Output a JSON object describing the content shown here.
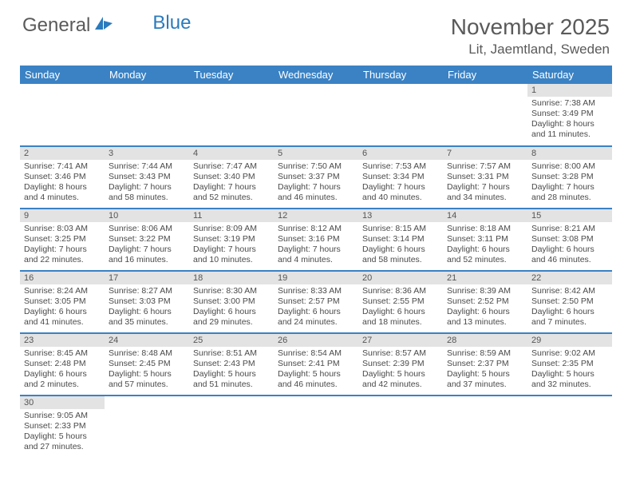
{
  "logo": {
    "text1": "General",
    "text2": "Blue"
  },
  "title": "November 2025",
  "location": "Lit, Jaemtland, Sweden",
  "colors": {
    "header_bg": "#3a82c4",
    "daynum_bg": "#e3e3e3",
    "text": "#5a5a5a"
  },
  "day_headers": [
    "Sunday",
    "Monday",
    "Tuesday",
    "Wednesday",
    "Thursday",
    "Friday",
    "Saturday"
  ],
  "weeks": [
    [
      null,
      null,
      null,
      null,
      null,
      null,
      {
        "n": "1",
        "sr": "7:38 AM",
        "ss": "3:49 PM",
        "dl": "8 hours and 11 minutes."
      }
    ],
    [
      {
        "n": "2",
        "sr": "7:41 AM",
        "ss": "3:46 PM",
        "dl": "8 hours and 4 minutes."
      },
      {
        "n": "3",
        "sr": "7:44 AM",
        "ss": "3:43 PM",
        "dl": "7 hours and 58 minutes."
      },
      {
        "n": "4",
        "sr": "7:47 AM",
        "ss": "3:40 PM",
        "dl": "7 hours and 52 minutes."
      },
      {
        "n": "5",
        "sr": "7:50 AM",
        "ss": "3:37 PM",
        "dl": "7 hours and 46 minutes."
      },
      {
        "n": "6",
        "sr": "7:53 AM",
        "ss": "3:34 PM",
        "dl": "7 hours and 40 minutes."
      },
      {
        "n": "7",
        "sr": "7:57 AM",
        "ss": "3:31 PM",
        "dl": "7 hours and 34 minutes."
      },
      {
        "n": "8",
        "sr": "8:00 AM",
        "ss": "3:28 PM",
        "dl": "7 hours and 28 minutes."
      }
    ],
    [
      {
        "n": "9",
        "sr": "8:03 AM",
        "ss": "3:25 PM",
        "dl": "7 hours and 22 minutes."
      },
      {
        "n": "10",
        "sr": "8:06 AM",
        "ss": "3:22 PM",
        "dl": "7 hours and 16 minutes."
      },
      {
        "n": "11",
        "sr": "8:09 AM",
        "ss": "3:19 PM",
        "dl": "7 hours and 10 minutes."
      },
      {
        "n": "12",
        "sr": "8:12 AM",
        "ss": "3:16 PM",
        "dl": "7 hours and 4 minutes."
      },
      {
        "n": "13",
        "sr": "8:15 AM",
        "ss": "3:14 PM",
        "dl": "6 hours and 58 minutes."
      },
      {
        "n": "14",
        "sr": "8:18 AM",
        "ss": "3:11 PM",
        "dl": "6 hours and 52 minutes."
      },
      {
        "n": "15",
        "sr": "8:21 AM",
        "ss": "3:08 PM",
        "dl": "6 hours and 46 minutes."
      }
    ],
    [
      {
        "n": "16",
        "sr": "8:24 AM",
        "ss": "3:05 PM",
        "dl": "6 hours and 41 minutes."
      },
      {
        "n": "17",
        "sr": "8:27 AM",
        "ss": "3:03 PM",
        "dl": "6 hours and 35 minutes."
      },
      {
        "n": "18",
        "sr": "8:30 AM",
        "ss": "3:00 PM",
        "dl": "6 hours and 29 minutes."
      },
      {
        "n": "19",
        "sr": "8:33 AM",
        "ss": "2:57 PM",
        "dl": "6 hours and 24 minutes."
      },
      {
        "n": "20",
        "sr": "8:36 AM",
        "ss": "2:55 PM",
        "dl": "6 hours and 18 minutes."
      },
      {
        "n": "21",
        "sr": "8:39 AM",
        "ss": "2:52 PM",
        "dl": "6 hours and 13 minutes."
      },
      {
        "n": "22",
        "sr": "8:42 AM",
        "ss": "2:50 PM",
        "dl": "6 hours and 7 minutes."
      }
    ],
    [
      {
        "n": "23",
        "sr": "8:45 AM",
        "ss": "2:48 PM",
        "dl": "6 hours and 2 minutes."
      },
      {
        "n": "24",
        "sr": "8:48 AM",
        "ss": "2:45 PM",
        "dl": "5 hours and 57 minutes."
      },
      {
        "n": "25",
        "sr": "8:51 AM",
        "ss": "2:43 PM",
        "dl": "5 hours and 51 minutes."
      },
      {
        "n": "26",
        "sr": "8:54 AM",
        "ss": "2:41 PM",
        "dl": "5 hours and 46 minutes."
      },
      {
        "n": "27",
        "sr": "8:57 AM",
        "ss": "2:39 PM",
        "dl": "5 hours and 42 minutes."
      },
      {
        "n": "28",
        "sr": "8:59 AM",
        "ss": "2:37 PM",
        "dl": "5 hours and 37 minutes."
      },
      {
        "n": "29",
        "sr": "9:02 AM",
        "ss": "2:35 PM",
        "dl": "5 hours and 32 minutes."
      }
    ],
    [
      {
        "n": "30",
        "sr": "9:05 AM",
        "ss": "2:33 PM",
        "dl": "5 hours and 27 minutes."
      },
      null,
      null,
      null,
      null,
      null,
      null
    ]
  ],
  "labels": {
    "sunrise": "Sunrise: ",
    "sunset": "Sunset: ",
    "daylight": "Daylight: "
  }
}
